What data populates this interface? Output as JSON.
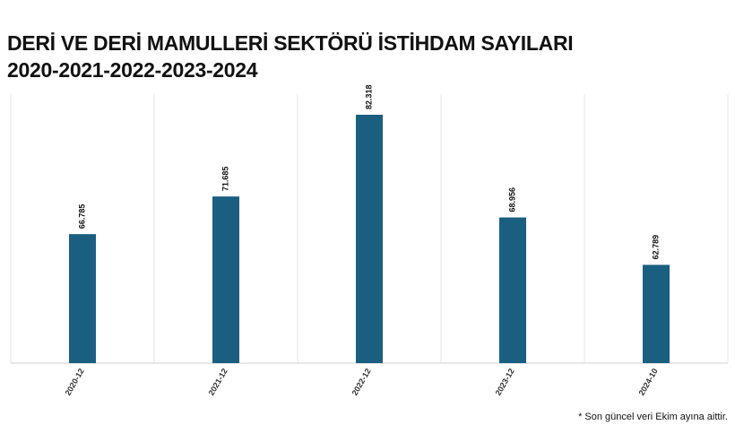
{
  "chart_data": {
    "type": "bar",
    "title": [
      "DERİ VE DERİ MAMULLERİ SEKTÖRÜ İSTİHDAM SAYILARI",
      "2020-2021-2022-2023-2024"
    ],
    "categories": [
      "2020-12",
      "2021-12",
      "2022-12",
      "2023-12",
      "2024-10"
    ],
    "values": [
      66785,
      71685,
      82318,
      68956,
      62789
    ],
    "value_labels": [
      "66.785",
      "71.685",
      "82.318",
      "68.956",
      "62.789"
    ],
    "color": "#1a5f80",
    "ylim": [
      50000,
      85000
    ],
    "footnote": "* Son güncel veri Ekim ayına aittir."
  }
}
